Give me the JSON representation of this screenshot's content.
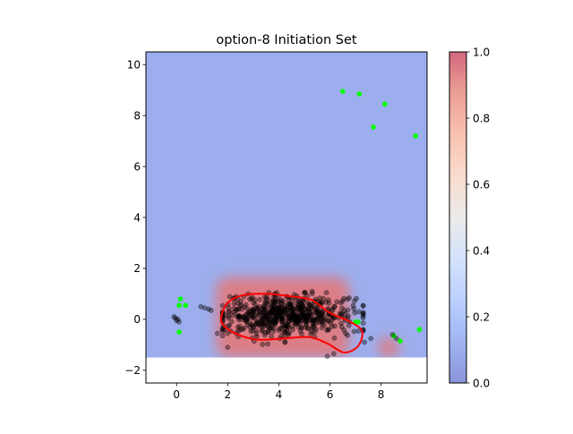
{
  "chart_data": {
    "type": "heatmap",
    "title": "option-8 Initiation Set",
    "xlim": [
      -1.2,
      9.8
    ],
    "ylim": [
      -2.5,
      10.5
    ],
    "x_ticks": [
      0,
      2,
      4,
      6,
      8
    ],
    "y_ticks": [
      -2,
      0,
      2,
      4,
      6,
      8,
      10
    ],
    "heatmap": {
      "colormap": "coolwarm",
      "value_range": [
        0,
        1
      ],
      "background_value": 0.1,
      "x_extent": [
        -1.2,
        9.8
      ],
      "y_extent": [
        -1.5,
        10.5
      ],
      "high_region": {
        "x": [
          1.55,
          6.75
        ],
        "y": [
          -1.5,
          1.65
        ],
        "value": 0.95
      },
      "step_region": {
        "x": [
          7.9,
          8.7
        ],
        "y": [
          -1.5,
          -0.7
        ],
        "value": 0.95
      }
    },
    "colorbar": {
      "range": [
        0,
        1
      ],
      "ticks": [
        "0.0",
        "0.2",
        "0.4",
        "0.6",
        "0.8",
        "1.0"
      ]
    },
    "series": [
      {
        "kind": "scatter",
        "color": "#00ff00",
        "points": [
          [
            6.5,
            8.95
          ],
          [
            7.15,
            8.85
          ],
          [
            8.15,
            8.45
          ],
          [
            7.7,
            7.55
          ],
          [
            9.35,
            7.2
          ],
          [
            0.15,
            0.8
          ],
          [
            0.1,
            0.55
          ],
          [
            0.35,
            0.55
          ],
          [
            0.1,
            -0.5
          ],
          [
            7.0,
            -0.1
          ],
          [
            7.1,
            -0.1
          ],
          [
            8.5,
            -0.65
          ],
          [
            8.75,
            -0.85
          ],
          [
            9.5,
            -0.4
          ]
        ]
      },
      {
        "kind": "scatter",
        "color": "#000000",
        "cluster": {
          "center": [
            4.3,
            0.15
          ],
          "spread": [
            1.3,
            0.4
          ],
          "count": 620,
          "seed": 7
        },
        "points": [
          [
            -0.05,
            0.05
          ],
          [
            0.0,
            -0.05
          ],
          [
            0.05,
            0.0
          ],
          [
            -0.1,
            0.1
          ],
          [
            0.1,
            -0.1
          ],
          [
            1.1,
            0.45
          ],
          [
            1.25,
            0.4
          ],
          [
            1.35,
            0.35
          ],
          [
            0.95,
            0.5
          ],
          [
            7.35,
            -0.9
          ],
          [
            7.6,
            -0.75
          ],
          [
            8.45,
            -0.6
          ],
          [
            8.6,
            -0.75
          ],
          [
            2.0,
            -1.1
          ],
          [
            5.9,
            -1.45
          ],
          [
            6.15,
            -1.35
          ],
          [
            5.3,
            1.1
          ],
          [
            2.8,
            1.0
          ],
          [
            1.6,
            -0.55
          ]
        ]
      },
      {
        "kind": "contour",
        "color": "#ff0000",
        "path": [
          [
            1.75,
            0.1
          ],
          [
            2.0,
            0.65
          ],
          [
            2.6,
            0.95
          ],
          [
            3.5,
            1.0
          ],
          [
            4.5,
            0.9
          ],
          [
            5.3,
            0.75
          ],
          [
            6.0,
            0.25
          ],
          [
            6.7,
            -0.05
          ],
          [
            7.25,
            -0.45
          ],
          [
            7.1,
            -1.05
          ],
          [
            6.55,
            -1.3
          ],
          [
            5.9,
            -0.95
          ],
          [
            5.2,
            -0.7
          ],
          [
            4.2,
            -0.75
          ],
          [
            3.2,
            -0.8
          ],
          [
            2.4,
            -0.6
          ],
          [
            1.85,
            -0.25
          ]
        ]
      }
    ]
  }
}
